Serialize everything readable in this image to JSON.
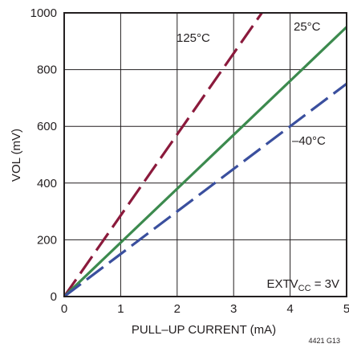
{
  "chart_data": {
    "type": "line",
    "xlabel": "PULL–UP CURRENT (mA)",
    "ylabel": "VOL (mV)",
    "xlim": [
      0,
      5
    ],
    "ylim": [
      0,
      1000
    ],
    "xticks": [
      "0",
      "1",
      "2",
      "3",
      "4",
      "5"
    ],
    "yticks": [
      "0",
      "200",
      "400",
      "600",
      "800",
      "1000"
    ],
    "grid": true,
    "series": [
      {
        "name": "125°C",
        "x": [
          0,
          3.5
        ],
        "y": [
          0,
          1000
        ],
        "color": "#8b1a3c",
        "dash": "long-dash"
      },
      {
        "name": "25°C",
        "x": [
          0,
          5
        ],
        "y": [
          0,
          950
        ],
        "color": "#3c8a4e",
        "dash": "solid"
      },
      {
        "name": "–40°C",
        "x": [
          0,
          5
        ],
        "y": [
          0,
          750
        ],
        "color": "#3a4f9e",
        "dash": "long-dash"
      }
    ],
    "annotation": {
      "text": "EXTV",
      "subscript": "CC",
      "suffix": " = 3V"
    },
    "figure_code": "4421 G13"
  }
}
